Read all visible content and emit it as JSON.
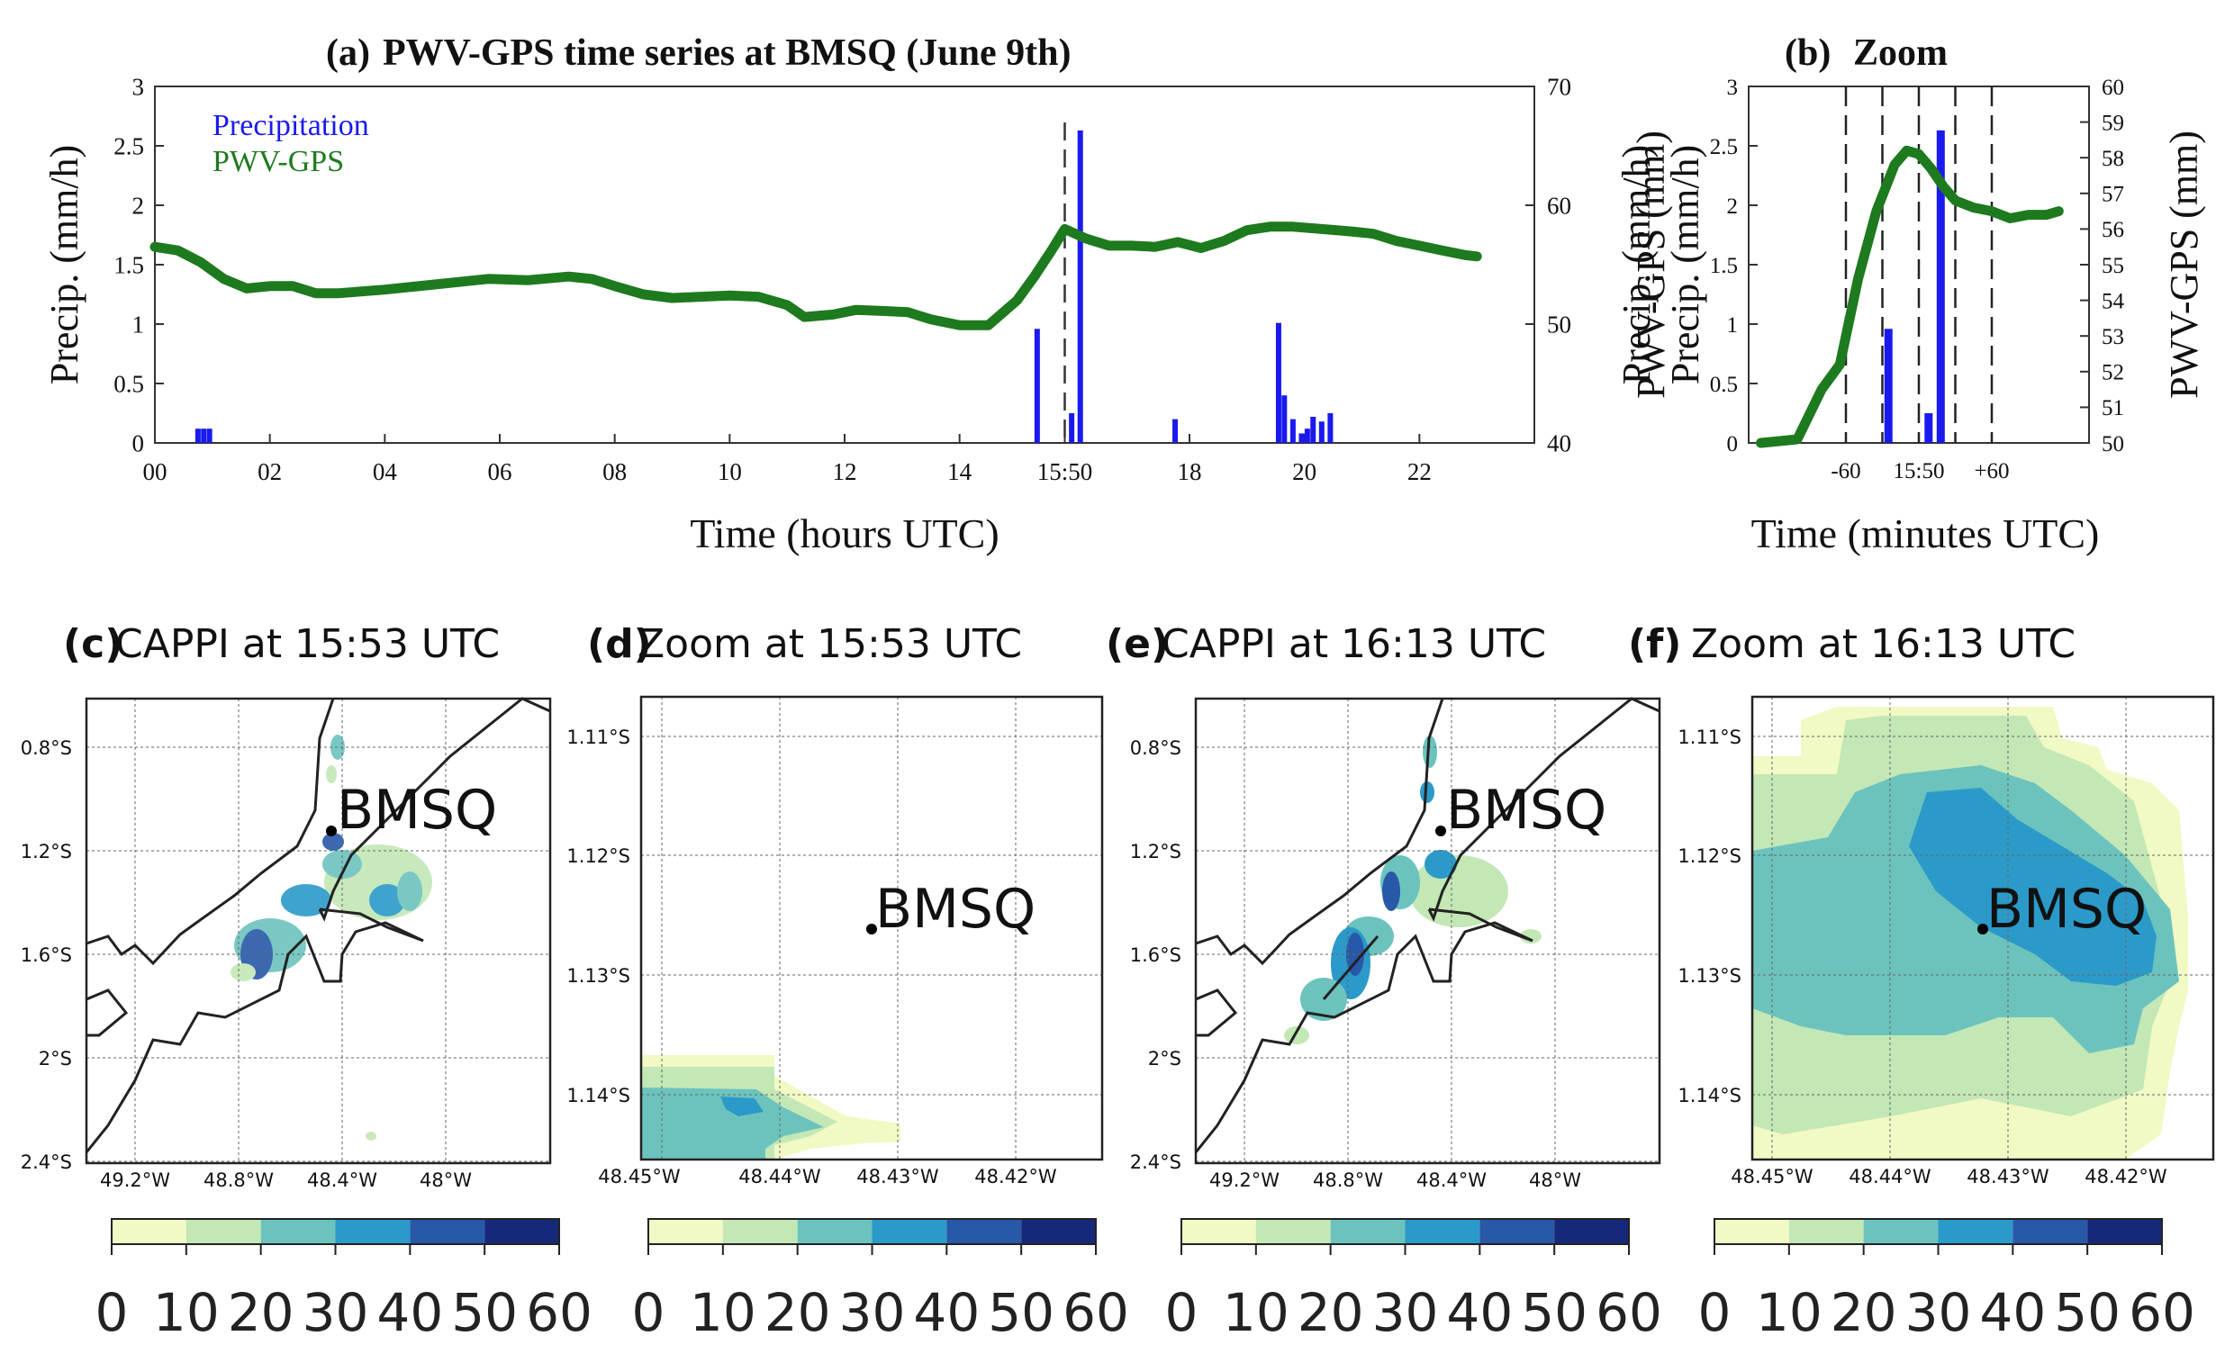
{
  "colors": {
    "precip": "#1a1aee",
    "pwv": "#1e7a1e",
    "ref_scale": [
      "#f1f9c4",
      "#c3e7b5",
      "#6cc3be",
      "#2b9ac9",
      "#2858a8",
      "#162879"
    ]
  },
  "chart_data": [
    {
      "id": "a",
      "type": "bar+line",
      "title": "PWV-GPS time series at BMSQ (June 9th)",
      "panel_label": "(a)",
      "xlabel": "Time (hours UTC)",
      "ylabel_left": "Precip. (mm/h)",
      "ylabel_right": "PWV-GPS (mm)",
      "ylabel_right_overlap": "Precip. (mm/h)",
      "xlim": [
        0,
        24
      ],
      "ylim_left": [
        0,
        3
      ],
      "ylim_right": [
        40,
        70
      ],
      "x_tick_labels": [
        "00",
        "02",
        "04",
        "06",
        "08",
        "10",
        "12",
        "14",
        "15:50",
        "18",
        "20",
        "22"
      ],
      "x_tick_values": [
        0,
        2,
        4,
        6,
        8,
        10,
        12,
        14,
        15.83,
        18,
        20,
        22
      ],
      "y_left_ticks": [
        "0",
        "0.5",
        "1",
        "1.5",
        "2",
        "2.5",
        "3"
      ],
      "y_right_ticks": [
        "40",
        "50",
        "60",
        "70"
      ],
      "vline_x": 15.83,
      "legend": [
        "Precipitation",
        "PWV-GPS"
      ],
      "precip": [
        {
          "x": 0.75,
          "v": 0.12
        },
        {
          "x": 0.85,
          "v": 0.12
        },
        {
          "x": 0.95,
          "v": 0.12
        },
        {
          "x": 15.35,
          "v": 0.96
        },
        {
          "x": 15.95,
          "v": 0.25
        },
        {
          "x": 16.1,
          "v": 2.63
        },
        {
          "x": 17.75,
          "v": 0.2
        },
        {
          "x": 19.55,
          "v": 1.01
        },
        {
          "x": 19.65,
          "v": 0.4
        },
        {
          "x": 19.8,
          "v": 0.2
        },
        {
          "x": 19.95,
          "v": 0.08
        },
        {
          "x": 20.05,
          "v": 0.12
        },
        {
          "x": 20.15,
          "v": 0.22
        },
        {
          "x": 20.3,
          "v": 0.18
        },
        {
          "x": 20.45,
          "v": 0.25
        }
      ],
      "pwv": [
        [
          0.0,
          56.5
        ],
        [
          0.4,
          56.2
        ],
        [
          0.8,
          55.2
        ],
        [
          1.2,
          53.8
        ],
        [
          1.6,
          53.0
        ],
        [
          2.0,
          53.2
        ],
        [
          2.4,
          53.2
        ],
        [
          2.8,
          52.6
        ],
        [
          3.2,
          52.6
        ],
        [
          4.0,
          52.9
        ],
        [
          5.0,
          53.4
        ],
        [
          5.8,
          53.8
        ],
        [
          6.5,
          53.7
        ],
        [
          7.2,
          54.0
        ],
        [
          7.6,
          53.8
        ],
        [
          8.0,
          53.2
        ],
        [
          8.5,
          52.5
        ],
        [
          9.0,
          52.2
        ],
        [
          9.5,
          52.3
        ],
        [
          10.0,
          52.4
        ],
        [
          10.5,
          52.3
        ],
        [
          11.0,
          51.6
        ],
        [
          11.3,
          50.6
        ],
        [
          11.8,
          50.8
        ],
        [
          12.2,
          51.2
        ],
        [
          12.7,
          51.1
        ],
        [
          13.1,
          51.0
        ],
        [
          13.5,
          50.4
        ],
        [
          14.0,
          49.9
        ],
        [
          14.5,
          49.9
        ],
        [
          15.0,
          52.0
        ],
        [
          15.3,
          54.0
        ],
        [
          15.6,
          56.2
        ],
        [
          15.83,
          58.0
        ],
        [
          16.2,
          57.2
        ],
        [
          16.6,
          56.6
        ],
        [
          17.0,
          56.6
        ],
        [
          17.4,
          56.5
        ],
        [
          17.8,
          56.9
        ],
        [
          18.2,
          56.4
        ],
        [
          18.6,
          57.0
        ],
        [
          19.0,
          57.9
        ],
        [
          19.4,
          58.2
        ],
        [
          19.8,
          58.2
        ],
        [
          20.3,
          58.0
        ],
        [
          20.8,
          57.8
        ],
        [
          21.2,
          57.6
        ],
        [
          21.6,
          57.0
        ],
        [
          22.0,
          56.6
        ],
        [
          22.4,
          56.2
        ],
        [
          22.8,
          55.8
        ],
        [
          23.0,
          55.7
        ]
      ]
    },
    {
      "id": "b",
      "type": "bar+line",
      "title": "Zoom",
      "panel_label": "(b)",
      "xlabel": "Time (minutes UTC)",
      "ylabel_left": "Precip. (mm/h)",
      "ylabel_right": "PWV-GPS (mm)",
      "xlim": [
        -140,
        140
      ],
      "ylim_left": [
        0,
        3
      ],
      "ylim_right": [
        50,
        60
      ],
      "x_tick_labels": [
        "-60",
        "15:50",
        "+60"
      ],
      "x_tick_values": [
        -60,
        0,
        60
      ],
      "y_left_ticks": [
        "0",
        "0.5",
        "1",
        "1.5",
        "2",
        "2.5",
        "3"
      ],
      "y_right_ticks": [
        "50",
        "51",
        "52",
        "53",
        "54",
        "55",
        "56",
        "57",
        "58",
        "59",
        "60"
      ],
      "vlines_x": [
        -60,
        -30,
        0,
        30,
        60
      ],
      "precip": [
        {
          "x": -25,
          "v": 0.96
        },
        {
          "x": 8,
          "v": 0.25
        },
        {
          "x": 18,
          "v": 2.63
        }
      ],
      "pwv": [
        [
          -130,
          50.0
        ],
        [
          -100,
          50.1
        ],
        [
          -80,
          51.5
        ],
        [
          -65,
          52.2
        ],
        [
          -50,
          54.6
        ],
        [
          -35,
          56.5
        ],
        [
          -20,
          57.8
        ],
        [
          -10,
          58.2
        ],
        [
          0,
          58.1
        ],
        [
          10,
          57.7
        ],
        [
          20,
          57.2
        ],
        [
          30,
          56.8
        ],
        [
          45,
          56.6
        ],
        [
          60,
          56.5
        ],
        [
          75,
          56.3
        ],
        [
          90,
          56.4
        ],
        [
          105,
          56.4
        ],
        [
          115,
          56.5
        ]
      ]
    }
  ],
  "maps": [
    {
      "id": "c",
      "label": "(c)",
      "title": "CAPPI at 15:53 UTC",
      "station": "BMSQ",
      "lat_ticks": [
        "0.8°S",
        "1.2°S",
        "1.6°S",
        "2°S",
        "2.4°S"
      ],
      "lon_ticks": [
        "49.2°W",
        "48.8°W",
        "48.4°W",
        "48°W"
      ]
    },
    {
      "id": "d",
      "label": "(d)",
      "title": "Zoom at 15:53 UTC",
      "station": "BMSQ",
      "lat_ticks": [
        "1.11°S",
        "1.12°S",
        "1.13°S",
        "1.14°S"
      ],
      "lon_ticks": [
        "48.45°W",
        "48.44°W",
        "48.43°W",
        "48.42°W"
      ]
    },
    {
      "id": "e",
      "label": "(e)",
      "title": "CAPPI at 16:13 UTC",
      "station": "BMSQ",
      "lat_ticks": [
        "0.8°S",
        "1.2°S",
        "1.6°S",
        "2°S",
        "2.4°S"
      ],
      "lon_ticks": [
        "49.2°W",
        "48.8°W",
        "48.4°W",
        "48°W"
      ]
    },
    {
      "id": "f",
      "label": "(f)",
      "title": "Zoom at 16:13 UTC",
      "station": "BMSQ",
      "lat_ticks": [
        "1.11°S",
        "1.12°S",
        "1.13°S",
        "1.14°S"
      ],
      "lon_ticks": [
        "48.45°W",
        "48.44°W",
        "48.43°W",
        "48.42°W"
      ]
    }
  ],
  "colorbar": {
    "tick_labels": [
      "0",
      "10",
      "20",
      "30",
      "40",
      "50",
      "60"
    ]
  }
}
